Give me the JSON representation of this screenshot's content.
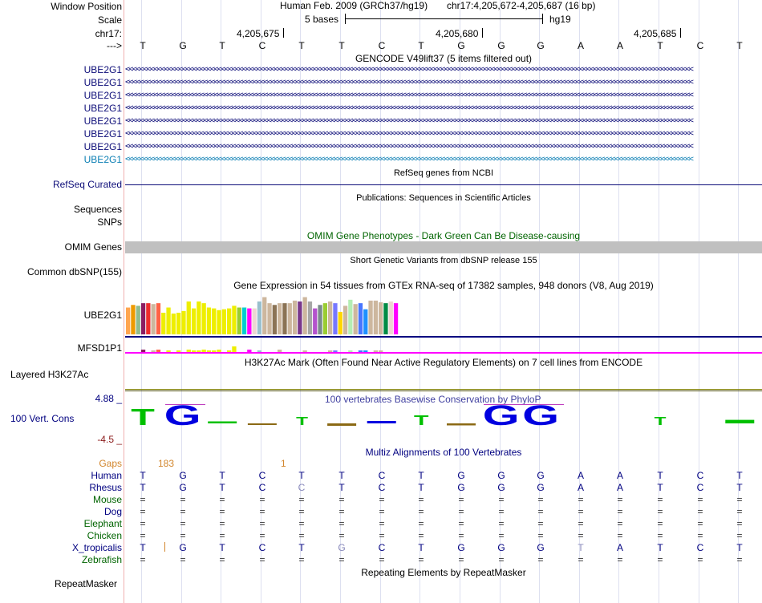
{
  "header": {
    "window_position_label": "Window Position",
    "scale_label": "Scale",
    "chrom_label": "chr17:",
    "strand_label": "--->",
    "assembly": "Human Feb. 2009 (GRCh37/hg19)",
    "position": "chr17:4,205,672-4,205,687 (16 bp)",
    "scale_text": "5 bases",
    "db": "hg19",
    "coords": [
      "4,205,675",
      "4,205,680",
      "4,205,685"
    ]
  },
  "bases": [
    "T",
    "G",
    "T",
    "C",
    "T",
    "T",
    "C",
    "T",
    "G",
    "G",
    "G",
    "A",
    "A",
    "T",
    "C",
    "T"
  ],
  "gencode": {
    "title": "GENCODE V49lift37 (5 items filtered out)",
    "items": [
      "UBE2G1",
      "UBE2G1",
      "UBE2G1",
      "UBE2G1",
      "UBE2G1",
      "UBE2G1",
      "UBE2G1",
      "UBE2G1"
    ],
    "colors": [
      "#0c0c78",
      "#0c0c78",
      "#0c0c78",
      "#0c0c78",
      "#0c0c78",
      "#0c0c78",
      "#0c0c78",
      "#0c7fb4"
    ]
  },
  "refseq": {
    "title": "RefSeq genes from NCBI",
    "label": "RefSeq Curated"
  },
  "publications": {
    "title": "Publications: Sequences in Scientific Articles",
    "labels": [
      "Sequences",
      "SNPs"
    ]
  },
  "omim": {
    "title": "OMIM Gene Phenotypes - Dark Green Can Be Disease-causing",
    "label": "OMIM Genes",
    "color": "#006400"
  },
  "dbsnp": {
    "title": "Short Genetic Variants from dbSNP release 155",
    "label": "Common dbSNP(155)"
  },
  "gtex": {
    "title": "Gene Expression in 54 tissues from GTEx RNA-seq of 17382 samples, 948 donors (V8, Aug 2019)",
    "genes": [
      "UBE2G1",
      "MFSD1P1"
    ],
    "levels": [
      0.62,
      0.68,
      0.66,
      0.72,
      0.72,
      0.7,
      0.72,
      0.5,
      0.62,
      0.48,
      0.5,
      0.54,
      0.76,
      0.6,
      0.76,
      0.72,
      0.62,
      0.6,
      0.56,
      0.58,
      0.6,
      0.66,
      0.62,
      0.62,
      0.6,
      0.6,
      0.76,
      0.86,
      0.72,
      0.68,
      0.72,
      0.72,
      0.72,
      0.78,
      0.76,
      0.86,
      0.76,
      0.6,
      0.68,
      0.72,
      0.76,
      0.72,
      0.52,
      0.66,
      0.8,
      0.7,
      0.72,
      0.58,
      0.78,
      0.78,
      0.74,
      0.72,
      0.76,
      0.72
    ],
    "colors": [
      "#ffa54f",
      "#ee9a00",
      "#8fbc8f",
      "#8b1c62",
      "#ee2c2c",
      "#cdb79e",
      "#ff6347",
      "#eeee00",
      "#eeee00",
      "#eeee00",
      "#eeee00",
      "#eeee00",
      "#eeee00",
      "#eeee00",
      "#eeee00",
      "#eeee00",
      "#eeee00",
      "#eeee00",
      "#eeee00",
      "#eeee00",
      "#eeee00",
      "#eeee00",
      "#9acd32",
      "#00ced1",
      "#ff00ff",
      "#eed5d2",
      "#9ac0cd",
      "#cdb79e",
      "#cdb79e",
      "#8b7355",
      "#cdb79e",
      "#8b7355",
      "#cdb79e",
      "#cdb79e",
      "#7a378b",
      "#cdb79e",
      "#a6a6a6",
      "#b452cd",
      "#7a8b8b",
      "#9acd32",
      "#cdb79e",
      "#7777ff",
      "#ffd700",
      "#cdb79e",
      "#b4eeb4",
      "#cdb79e",
      "#4876ff",
      "#1e90ff",
      "#cdb79e",
      "#cdb79e",
      "#cdb79e",
      "#008b45",
      "#eed5d2",
      "#ff00ff"
    ]
  },
  "h3k27ac": {
    "title": "H3K27Ac Mark (Often Found Near Active Regulatory Elements) on 7 cell lines from ENCODE",
    "label": "Layered H3K27Ac"
  },
  "cons": {
    "title": "100 vertebrates Basewise Conservation by PhyloP",
    "label": "100 Vert. Cons",
    "max": "4.88 _",
    "min": "-4.5 _",
    "scores": [
      4.0,
      4.88,
      0.5,
      -0.3,
      2.0,
      -0.6,
      0.6,
      2.5,
      -0.5,
      4.88,
      4.88,
      0,
      0,
      2.0,
      0,
      0.9
    ]
  },
  "multiz": {
    "title": "Multiz Alignments of 100 Vertebrates",
    "gaps_label": "Gaps",
    "gap_counts": [
      "183",
      "1"
    ],
    "species": [
      {
        "name": "Human",
        "color": "#000080",
        "seq": [
          "T",
          "G",
          "T",
          "C",
          "T",
          "T",
          "C",
          "T",
          "G",
          "G",
          "G",
          "A",
          "A",
          "T",
          "C",
          "T"
        ]
      },
      {
        "name": "Rhesus",
        "color": "#000080",
        "seq": [
          "T",
          "G",
          "T",
          "C",
          "C",
          "T",
          "C",
          "T",
          "G",
          "G",
          "G",
          "A",
          "A",
          "T",
          "C",
          "T"
        ]
      },
      {
        "name": "Mouse",
        "color": "#006400",
        "seq": [
          "=",
          "=",
          "=",
          "=",
          "=",
          "=",
          "=",
          "=",
          "=",
          "=",
          "=",
          "=",
          "=",
          "=",
          "=",
          "="
        ]
      },
      {
        "name": "Dog",
        "color": "#000080",
        "seq": [
          "=",
          "=",
          "=",
          "=",
          "=",
          "=",
          "=",
          "=",
          "=",
          "=",
          "=",
          "=",
          "=",
          "=",
          "=",
          "="
        ]
      },
      {
        "name": "Elephant",
        "color": "#006400",
        "seq": [
          "=",
          "=",
          "=",
          "=",
          "=",
          "=",
          "=",
          "=",
          "=",
          "=",
          "=",
          "=",
          "=",
          "=",
          "=",
          "="
        ]
      },
      {
        "name": "Chicken",
        "color": "#006400",
        "seq": [
          "=",
          "=",
          "=",
          "=",
          "=",
          "=",
          "=",
          "=",
          "=",
          "=",
          "=",
          "=",
          "=",
          "=",
          "=",
          "="
        ]
      },
      {
        "name": "X_tropicalis",
        "color": "#000080",
        "seq": [
          "T",
          "G",
          "T",
          "C",
          "T",
          "G",
          "C",
          "T",
          "G",
          "G",
          "G",
          "T",
          "A",
          "T",
          "C",
          "T"
        ]
      },
      {
        "name": "Zebrafish",
        "color": "#006400",
        "seq": [
          "=",
          "=",
          "=",
          "=",
          "=",
          "=",
          "=",
          "=",
          "=",
          "=",
          "=",
          "=",
          "=",
          "=",
          "=",
          "="
        ]
      }
    ]
  },
  "repeatmasker": {
    "title": "Repeating Elements by RepeatMasker",
    "label": "RepeatMasker"
  }
}
